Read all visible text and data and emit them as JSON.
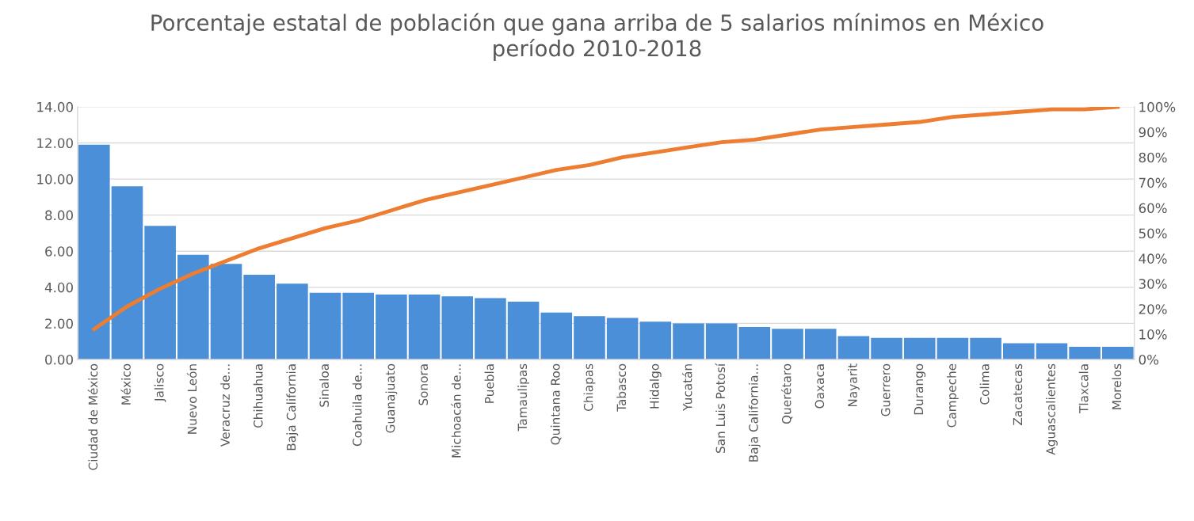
{
  "chart_data": {
    "type": "bar",
    "title": "Porcentaje estatal de población que gana arriba de 5 salarios mínimos en México\nperíodo 2010-2018",
    "categories": [
      "Ciudad de México",
      "México",
      "Jalisco",
      "Nuevo León",
      "Veracruz de...",
      "Chihuahua",
      "Baja California",
      "Sinaloa",
      "Coahuila de...",
      "Guanajuato",
      "Sonora",
      "Michoacán de...",
      "Puebla",
      "Tamaulipas",
      "Quintana Roo",
      "Chiapas",
      "Tabasco",
      "Hidalgo",
      "Yucatán",
      "San Luis Potosí",
      "Baja California...",
      "Querétaro",
      "Oaxaca",
      "Nayarit",
      "Guerrero",
      "Durango",
      "Campeche",
      "Colima",
      "Zacatecas",
      "Aguascalientes",
      "Tlaxcala",
      "Morelos"
    ],
    "series": [
      {
        "color": "#4a8fd8",
        "values": [
          11.9,
          9.6,
          7.4,
          5.8,
          5.3,
          4.7,
          4.2,
          3.7,
          3.7,
          3.6,
          3.6,
          3.5,
          3.4,
          3.2,
          2.6,
          2.4,
          2.3,
          2.1,
          2.0,
          2.0,
          1.8,
          1.7,
          1.7,
          1.3,
          1.2,
          1.2,
          1.2,
          1.2,
          0.9,
          0.9,
          0.7,
          0.7
        ]
      },
      {
        "type": "line",
        "axis": "y2",
        "color": "#ed7d31",
        "values": [
          12,
          21,
          28,
          34,
          39,
          44,
          48,
          52,
          55,
          59,
          63,
          66,
          69,
          72,
          75,
          77,
          80,
          82,
          84,
          86,
          87,
          89,
          91,
          92,
          93,
          94,
          96,
          97,
          98,
          99,
          99,
          100
        ]
      }
    ],
    "ylim": [
      0,
      14
    ],
    "yticks": [
      {
        "value": 0,
        "label": "0.00"
      },
      {
        "value": 2,
        "label": "2.00"
      },
      {
        "value": 4,
        "label": "4.00"
      },
      {
        "value": 6,
        "label": "6.00"
      },
      {
        "value": 8,
        "label": "8.00"
      },
      {
        "value": 10,
        "label": "10.00"
      },
      {
        "value": 12,
        "label": "12.00"
      },
      {
        "value": 14,
        "label": "14.00"
      }
    ],
    "y2lim": [
      0,
      100
    ],
    "y2ticks": [
      {
        "value": 0,
        "label": "0%"
      },
      {
        "value": 10,
        "label": "10%"
      },
      {
        "value": 20,
        "label": "20%"
      },
      {
        "value": 30,
        "label": "30%"
      },
      {
        "value": 40,
        "label": "40%"
      },
      {
        "value": 50,
        "label": "50%"
      },
      {
        "value": 60,
        "label": "60%"
      },
      {
        "value": 70,
        "label": "70%"
      },
      {
        "value": 80,
        "label": "80%"
      },
      {
        "value": 90,
        "label": "90%"
      },
      {
        "value": 100,
        "label": "100%"
      }
    ],
    "grid": "y",
    "marker": "none",
    "line_style": "solid"
  }
}
